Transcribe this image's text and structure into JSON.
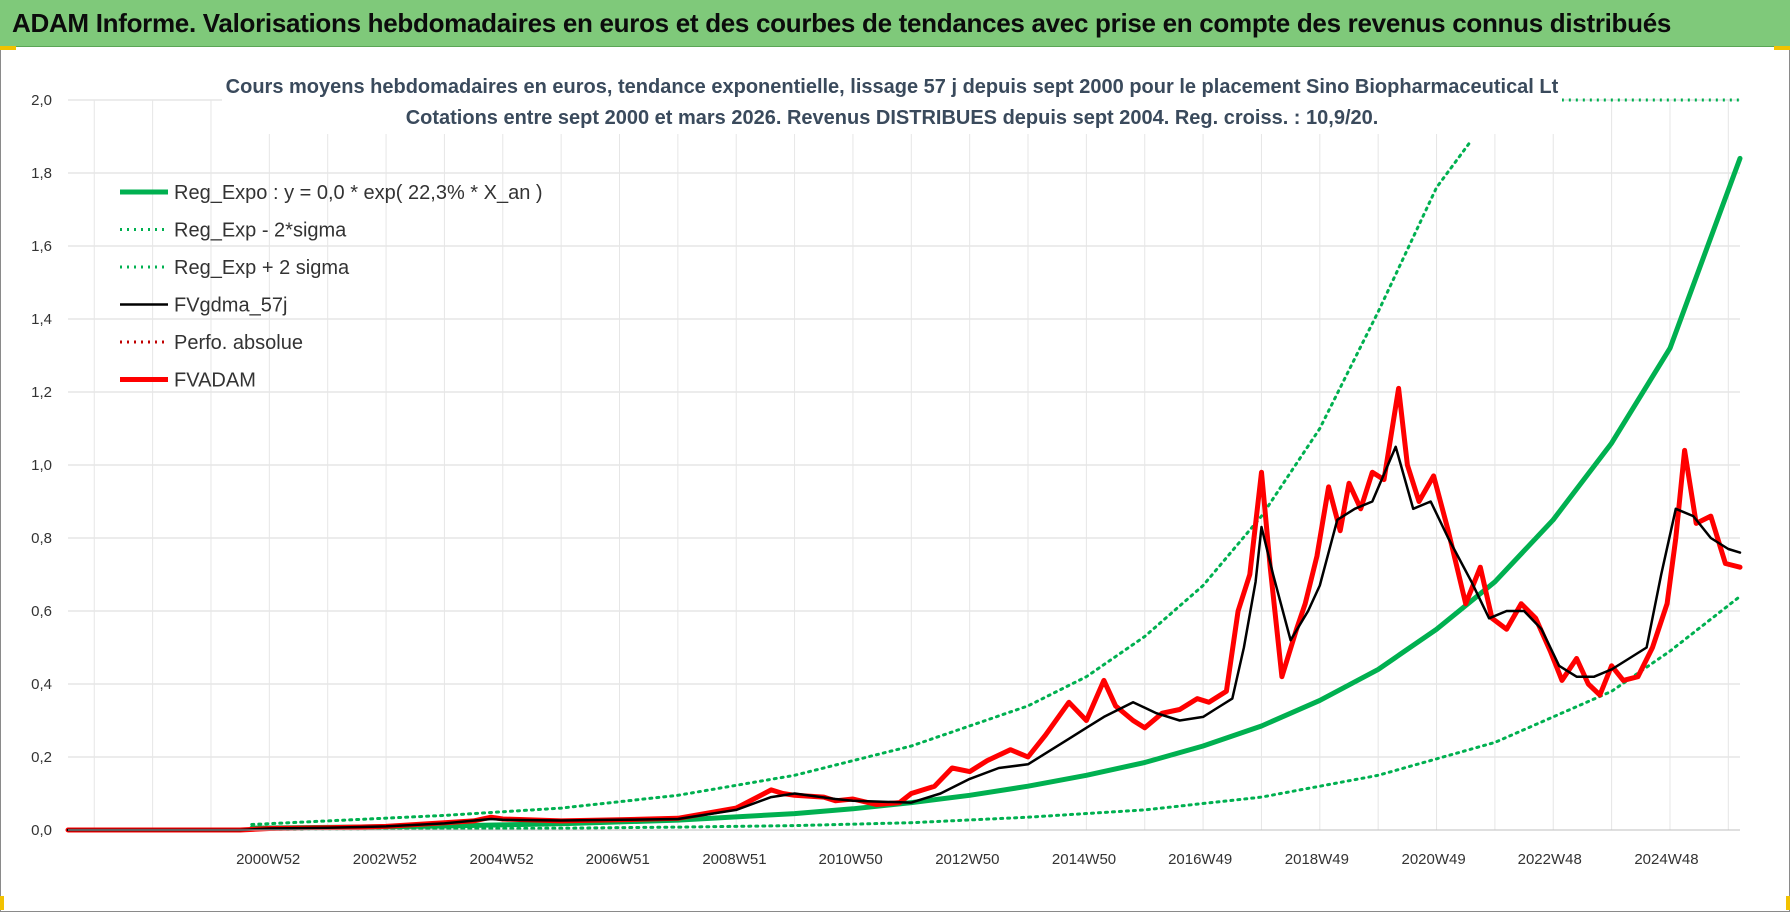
{
  "banner": {
    "title": "ADAM Informe. Valorisations hebdomadaires en euros et des courbes de tendances avec prise en compte des revenus connus distribués"
  },
  "colors": {
    "banner_bg": "#7fc97a",
    "regression": "#00b050",
    "smooth": "#000000",
    "fvadam": "#ff0000",
    "perfo": "#c00000"
  },
  "chart_data": {
    "type": "line",
    "title_line1": "Cours moyens hebdomadaires en euros, tendance exponentielle, lissage 57 j depuis sept 2000 pour le placement Sino Biopharmaceutical Lt",
    "title_line2": "Cotations entre sept 2000 et mars 2026. Revenus DISTRIBUES depuis sept 2004. Reg. croiss. : 10,9/20.",
    "ylim": [
      0,
      2
    ],
    "y_ticks": [
      "0,0",
      "0,2",
      "0,4",
      "0,6",
      "0,8",
      "1,0",
      "1,2",
      "1,4",
      "1,6",
      "1,8",
      "2,0"
    ],
    "x_ticks": [
      {
        "label": "2000W52",
        "year": 2000.98
      },
      {
        "label": "2002W52",
        "year": 2002.98
      },
      {
        "label": "2004W52",
        "year": 2004.98
      },
      {
        "label": "2006W51",
        "year": 2006.97
      },
      {
        "label": "2008W51",
        "year": 2008.97
      },
      {
        "label": "2010W50",
        "year": 2010.96
      },
      {
        "label": "2012W50",
        "year": 2012.96
      },
      {
        "label": "2014W50",
        "year": 2014.96
      },
      {
        "label": "2016W49",
        "year": 2016.95
      },
      {
        "label": "2018W49",
        "year": 2018.95
      },
      {
        "label": "2020W49",
        "year": 2020.95
      },
      {
        "label": "2022W48",
        "year": 2022.94
      },
      {
        "label": "2024W48",
        "year": 2024.94
      }
    ],
    "x_range": [
      1997.55,
      2026.2
    ],
    "legend_position": "top-left",
    "grid": true,
    "legend": [
      {
        "label": "Reg_Expo : y = 0,0 * exp( 22,3% *  X_an )",
        "style": "solid-thick",
        "color": "#00b050"
      },
      {
        "label": "Reg_Exp - 2*sigma",
        "style": "dotted",
        "color": "#00b050"
      },
      {
        "label": "Reg_Exp + 2 sigma",
        "style": "dotted",
        "color": "#00b050"
      },
      {
        "label": "FVgdma_57j",
        "style": "solid",
        "color": "#000000"
      },
      {
        "label": "Perfo. absolue",
        "style": "dotted",
        "color": "#c00000"
      },
      {
        "label": "FVADAM",
        "style": "solid-thick",
        "color": "#ff0000"
      }
    ],
    "series": [
      {
        "name": "Reg_Expo : y = 0,0 * exp( 22,3% *  X_an )",
        "x": [
          2000.7,
          2002,
          2004,
          2006,
          2008,
          2010,
          2011,
          2012,
          2013,
          2014,
          2015,
          2016,
          2017,
          2018,
          2019,
          2020,
          2021,
          2022,
          2023,
          2024,
          2025,
          2026.2
        ],
        "y": [
          0.005,
          0.007,
          0.011,
          0.017,
          0.027,
          0.045,
          0.058,
          0.075,
          0.095,
          0.12,
          0.15,
          0.185,
          0.23,
          0.285,
          0.355,
          0.44,
          0.55,
          0.68,
          0.85,
          1.06,
          1.32,
          1.84
        ]
      },
      {
        "name": "Reg_Exp - 2*sigma",
        "x": [
          2000.7,
          2004,
          2006,
          2008,
          2010,
          2012,
          2014,
          2016,
          2018,
          2020,
          2022,
          2024,
          2025,
          2026.2
        ],
        "y": [
          0.002,
          0.003,
          0.005,
          0.008,
          0.012,
          0.02,
          0.035,
          0.055,
          0.09,
          0.15,
          0.24,
          0.38,
          0.49,
          0.64
        ]
      },
      {
        "name": "Reg_Exp + 2 sigma",
        "x": [
          2000.7,
          2002,
          2004,
          2006,
          2008,
          2010,
          2012,
          2014,
          2015,
          2016,
          2017,
          2018,
          2019,
          2020,
          2021,
          2021.6
        ],
        "y": [
          0.015,
          0.025,
          0.04,
          0.06,
          0.095,
          0.15,
          0.23,
          0.34,
          0.42,
          0.53,
          0.67,
          0.86,
          1.1,
          1.42,
          1.76,
          1.89
        ]
      },
      {
        "name": "FVgdma_57j",
        "x": [
          1997.55,
          2000.5,
          2001,
          2002,
          2003,
          2004,
          2004.8,
          2005,
          2006,
          2007,
          2008,
          2009,
          2009.6,
          2010,
          2010.7,
          2011,
          2012,
          2012.5,
          2013,
          2013.5,
          2014,
          2014.7,
          2015,
          2015.3,
          2015.8,
          2016.2,
          2016.6,
          2017,
          2017.2,
          2017.5,
          2017.7,
          2017.9,
          2018,
          2018.2,
          2018.5,
          2018.8,
          2019,
          2019.3,
          2019.6,
          2019.9,
          2020.3,
          2020.6,
          2020.9,
          2021.2,
          2021.6,
          2021.9,
          2022.2,
          2022.5,
          2022.8,
          2023.1,
          2023.4,
          2023.7,
          2024,
          2024.3,
          2024.6,
          2024.85,
          2025.1,
          2025.4,
          2025.7,
          2026.0,
          2026.2
        ],
        "y": [
          0,
          0,
          0.004,
          0.006,
          0.01,
          0.018,
          0.03,
          0.028,
          0.026,
          0.028,
          0.03,
          0.055,
          0.09,
          0.1,
          0.085,
          0.08,
          0.075,
          0.1,
          0.14,
          0.17,
          0.18,
          0.25,
          0.28,
          0.31,
          0.35,
          0.32,
          0.3,
          0.31,
          0.33,
          0.36,
          0.5,
          0.68,
          0.83,
          0.7,
          0.52,
          0.6,
          0.67,
          0.85,
          0.88,
          0.9,
          1.05,
          0.88,
          0.9,
          0.8,
          0.68,
          0.58,
          0.6,
          0.6,
          0.55,
          0.45,
          0.42,
          0.42,
          0.44,
          0.47,
          0.5,
          0.7,
          0.88,
          0.86,
          0.8,
          0.77,
          0.76
        ]
      },
      {
        "name": "FVADAM",
        "x": [
          1997.55,
          2000.5,
          2001,
          2002,
          2003,
          2004,
          2004.5,
          2004.8,
          2005,
          2006,
          2007,
          2008,
          2009,
          2009.6,
          2009.8,
          2010,
          2010.5,
          2010.7,
          2011,
          2011.4,
          2011.8,
          2012,
          2012.4,
          2012.7,
          2013,
          2013.3,
          2013.7,
          2014,
          2014.3,
          2014.7,
          2015,
          2015.3,
          2015.5,
          2015.8,
          2016,
          2016.3,
          2016.6,
          2016.9,
          2017.1,
          2017.4,
          2017.6,
          2017.8,
          2018.0,
          2018.15,
          2018.35,
          2018.6,
          2018.75,
          2018.95,
          2019.15,
          2019.35,
          2019.5,
          2019.7,
          2019.9,
          2020.1,
          2020.35,
          2020.5,
          2020.7,
          2020.95,
          2021.2,
          2021.5,
          2021.75,
          2021.95,
          2022.2,
          2022.45,
          2022.7,
          2022.95,
          2023.15,
          2023.4,
          2023.6,
          2023.8,
          2024.0,
          2024.2,
          2024.45,
          2024.7,
          2024.95,
          2025.1,
          2025.25,
          2025.45,
          2025.7,
          2025.95,
          2026.2
        ],
        "y": [
          0,
          0,
          0.004,
          0.006,
          0.01,
          0.02,
          0.025,
          0.035,
          0.03,
          0.025,
          0.028,
          0.032,
          0.06,
          0.11,
          0.1,
          0.095,
          0.09,
          0.08,
          0.085,
          0.07,
          0.075,
          0.1,
          0.12,
          0.17,
          0.16,
          0.19,
          0.22,
          0.2,
          0.26,
          0.35,
          0.3,
          0.41,
          0.34,
          0.3,
          0.28,
          0.32,
          0.33,
          0.36,
          0.35,
          0.38,
          0.6,
          0.7,
          0.98,
          0.72,
          0.42,
          0.55,
          0.62,
          0.75,
          0.94,
          0.82,
          0.95,
          0.88,
          0.98,
          0.96,
          1.21,
          1.0,
          0.9,
          0.97,
          0.82,
          0.62,
          0.72,
          0.58,
          0.55,
          0.62,
          0.58,
          0.49,
          0.41,
          0.47,
          0.4,
          0.37,
          0.45,
          0.41,
          0.42,
          0.5,
          0.62,
          0.8,
          1.04,
          0.84,
          0.86,
          0.73,
          0.72
        ]
      }
    ]
  }
}
